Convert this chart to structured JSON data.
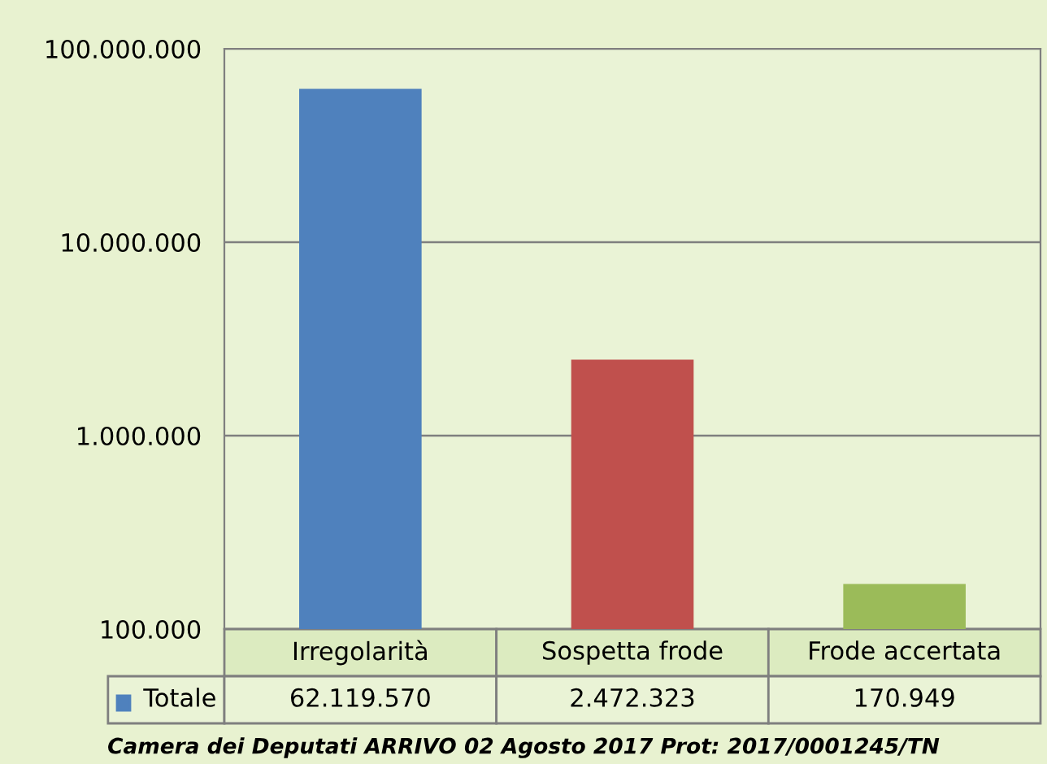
{
  "chart_data": {
    "type": "bar",
    "categories": [
      "Irregolarità",
      "Sospetta frode",
      "Frode accertata"
    ],
    "series": [
      {
        "name": "Totale",
        "color": "#4f81bd",
        "colors": [
          "#4f81bd",
          "#c0504d",
          "#9bbb59"
        ],
        "values": [
          62119570,
          2472323,
          170949
        ],
        "value_labels": [
          "62.119.570",
          "2.472.323",
          "170.949"
        ]
      }
    ],
    "log": true,
    "ylim": [
      100000,
      100000000
    ],
    "yticks": [
      {
        "value": 100000,
        "label": "100.000"
      },
      {
        "value": 1000000,
        "label": "1.000.000"
      },
      {
        "value": 10000000,
        "label": "10.000.000"
      },
      {
        "value": 100000000,
        "label": "100.000.000"
      }
    ],
    "grid": "y",
    "legend": "bottom left",
    "annotations": [
      "Camera dei Deputati ARRIVO 02 Agosto 2017 Prot: 2017/0001245/TN"
    ]
  }
}
